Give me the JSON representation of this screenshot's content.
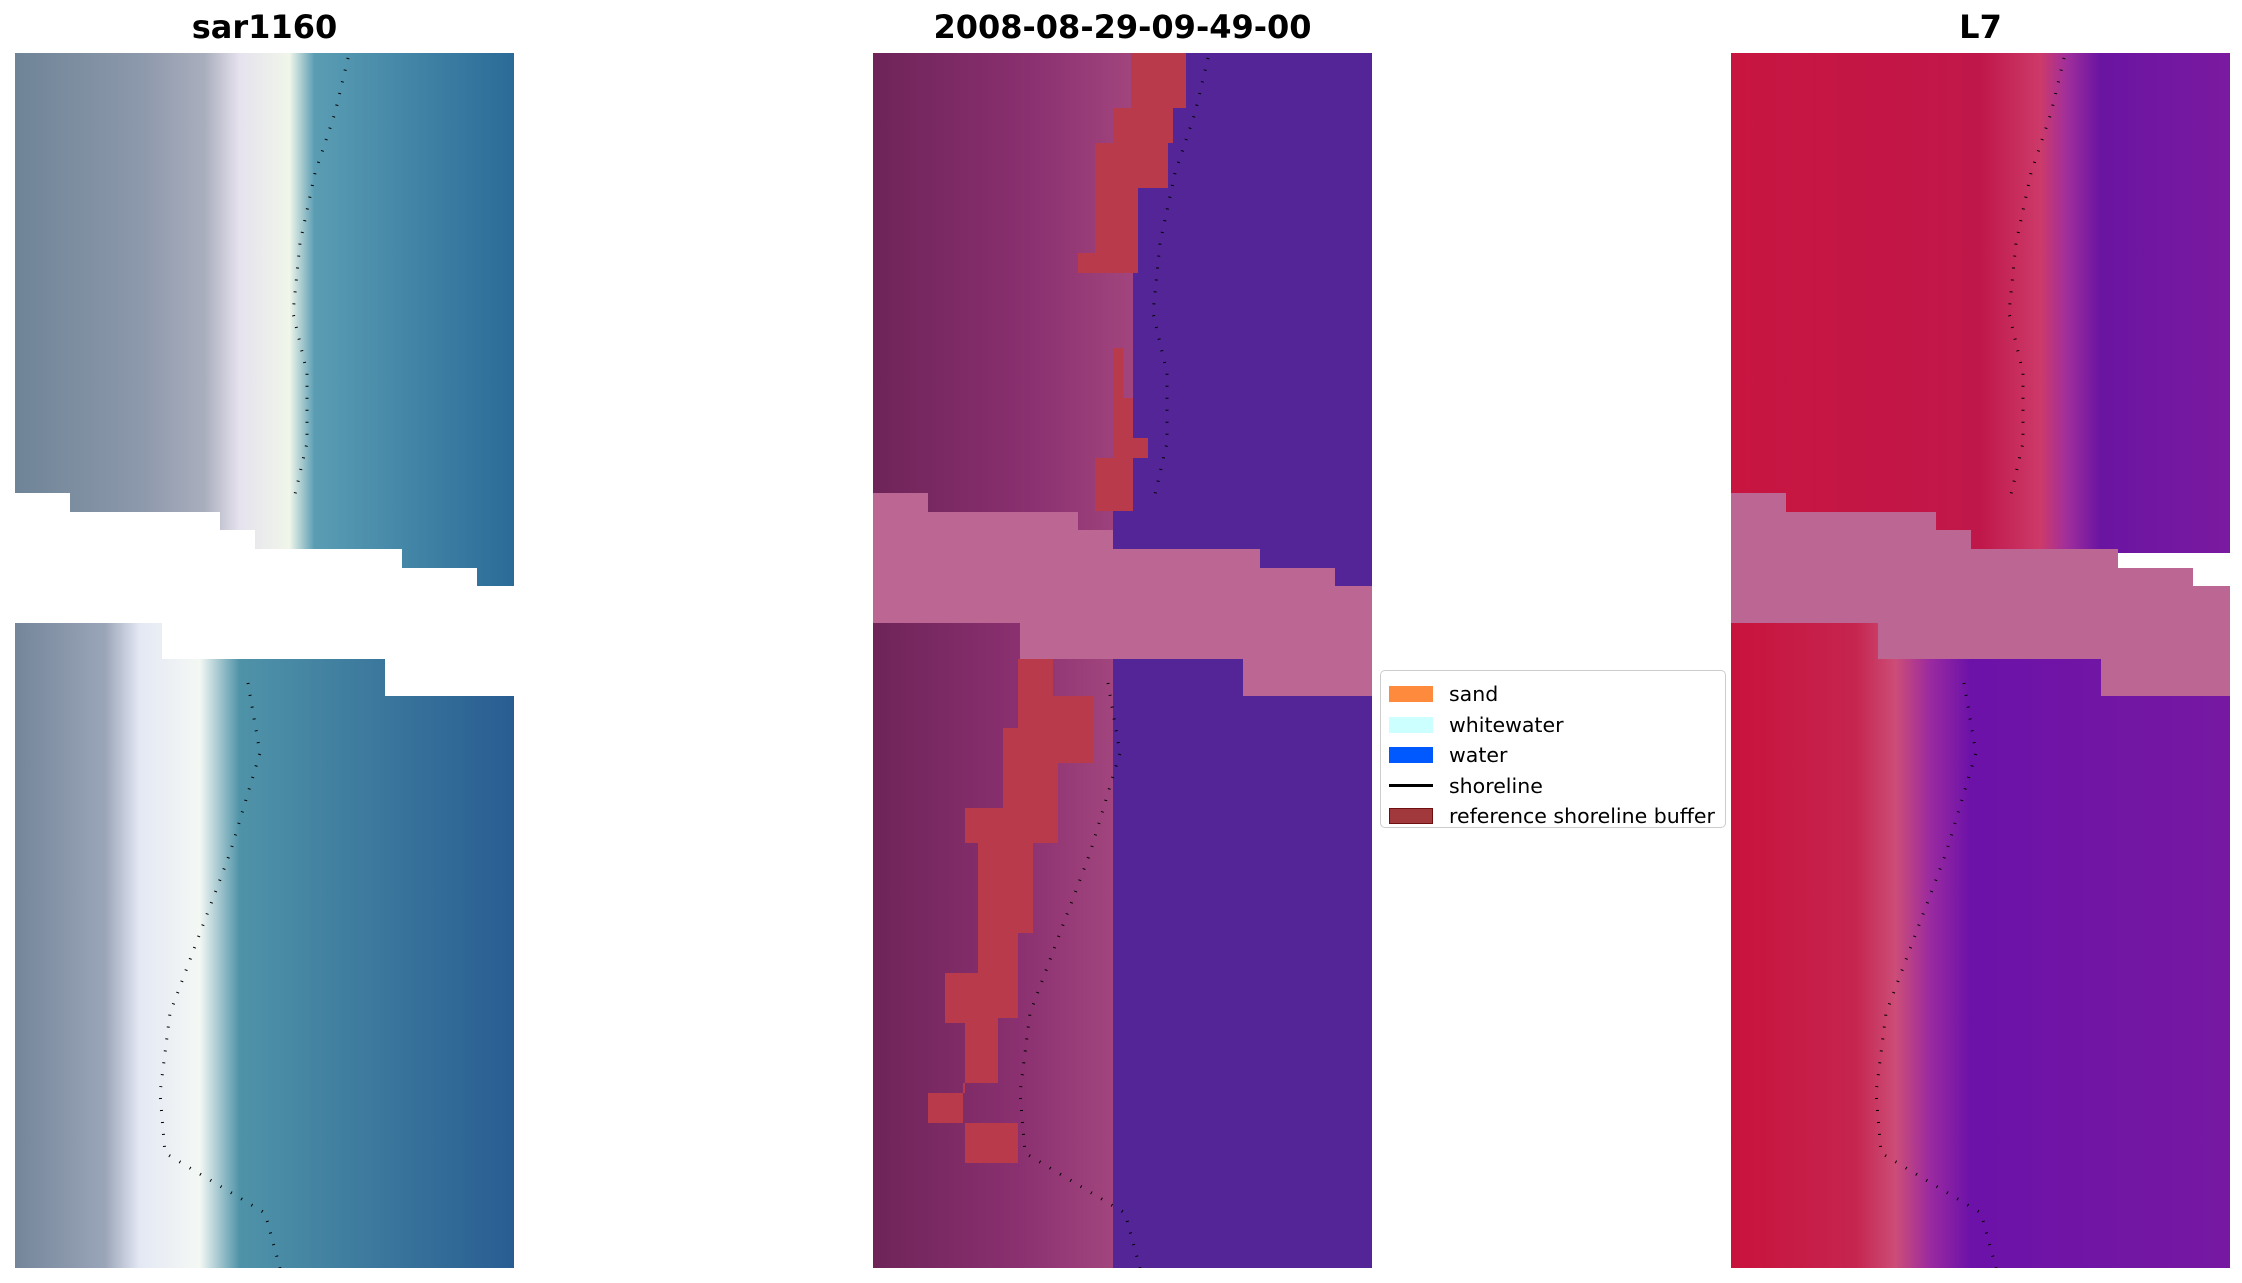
{
  "panels": [
    {
      "title": "sar1160",
      "kind": "rgb"
    },
    {
      "title": "2008-08-29-09-49-00",
      "kind": "classified"
    },
    {
      "title": "L7",
      "kind": "mndwi"
    }
  ],
  "legend": {
    "items": [
      {
        "label": "sand",
        "color": "#fe8a3d",
        "type": "patch"
      },
      {
        "label": "whitewater",
        "color": "#ccffff",
        "type": "patch"
      },
      {
        "label": "water",
        "color": "#0059ff",
        "type": "patch"
      },
      {
        "label": "shoreline",
        "color": "#000000",
        "type": "line"
      },
      {
        "label": "reference shoreline buffer",
        "color": "#a1393c",
        "type": "patch"
      }
    ]
  },
  "colors": {
    "nodata_band": "#bc6694",
    "water_purple": "#532597",
    "buffer_red": "#b83a4b"
  }
}
